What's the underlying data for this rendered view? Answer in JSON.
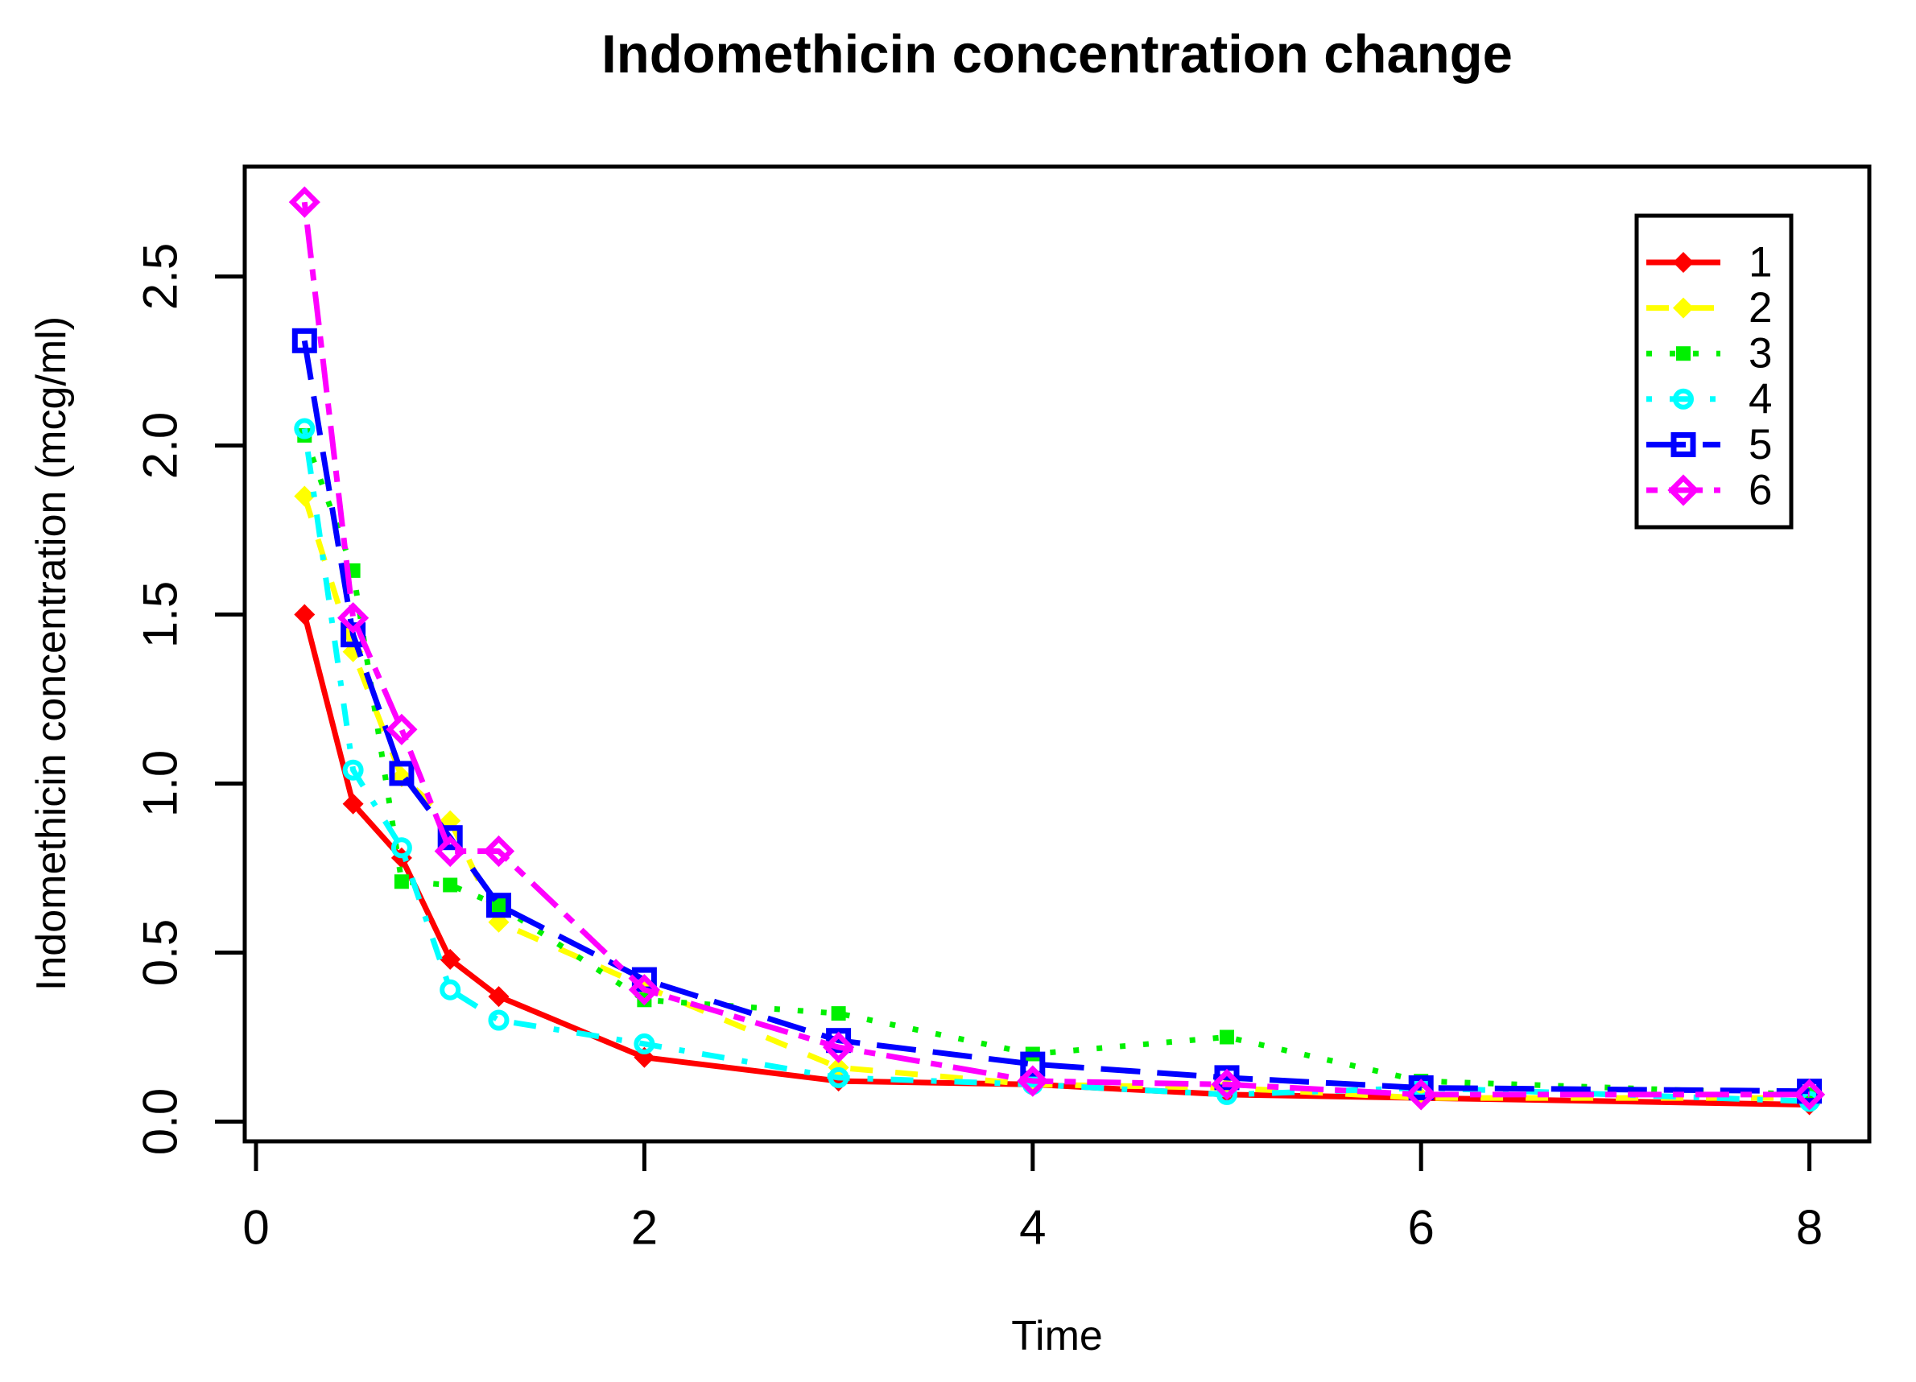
{
  "chart_data": {
    "type": "line",
    "title": "Indomethicin concentration change",
    "xlabel": "Time",
    "ylabel": "Indomethicin concentration (mcg/ml)",
    "x": [
      0.25,
      0.5,
      0.75,
      1,
      1.25,
      2,
      3,
      4,
      5,
      6,
      8
    ],
    "series": [
      {
        "name": "1",
        "color": "#ff0000",
        "linetype": "solid",
        "marker": "filled-diamond",
        "values": [
          1.5,
          0.94,
          0.78,
          0.48,
          0.37,
          0.19,
          0.12,
          0.11,
          0.08,
          0.07,
          0.05
        ]
      },
      {
        "name": "2",
        "color": "#ffff00",
        "linetype": "dashed",
        "marker": "filled-diamond",
        "values": [
          1.85,
          1.39,
          1.02,
          0.89,
          0.59,
          0.4,
          0.16,
          0.11,
          0.1,
          0.07,
          0.07
        ]
      },
      {
        "name": "3",
        "color": "#00f000",
        "linetype": "dotted",
        "marker": "filled-square",
        "values": [
          2.03,
          1.63,
          0.71,
          0.7,
          0.64,
          0.36,
          0.32,
          0.2,
          0.25,
          0.12,
          0.08
        ]
      },
      {
        "name": "4",
        "color": "#00ffff",
        "linetype": "dotdash",
        "marker": "open-circle",
        "values": [
          2.05,
          1.04,
          0.81,
          0.39,
          0.3,
          0.23,
          0.13,
          0.11,
          0.08,
          0.1,
          0.06
        ]
      },
      {
        "name": "5",
        "color": "#0000ff",
        "linetype": "longdash",
        "marker": "open-square",
        "values": [
          2.31,
          1.44,
          1.03,
          0.84,
          0.64,
          0.42,
          0.24,
          0.17,
          0.13,
          0.1,
          0.09
        ]
      },
      {
        "name": "6",
        "color": "#ff00ff",
        "linetype": "twodash",
        "marker": "open-diamond",
        "values": [
          2.72,
          1.49,
          1.16,
          0.8,
          0.8,
          0.39,
          0.22,
          0.12,
          0.11,
          0.08,
          0.08
        ]
      }
    ],
    "x_ticks": {
      "values": [
        0,
        2,
        4,
        6,
        8
      ],
      "labels": [
        "0",
        "2",
        "4",
        "6",
        "8"
      ]
    },
    "y_ticks": {
      "values": [
        0.0,
        0.5,
        1.0,
        1.5,
        2.0,
        2.5
      ],
      "labels": [
        "0.0",
        "0.5",
        "1.0",
        "1.5",
        "2.0",
        "2.5"
      ]
    },
    "xlim": [
      -0.06,
      8.31
    ],
    "ylim": [
      -0.06,
      2.83
    ],
    "grid": false,
    "legend_position": "top-right",
    "legend_labels": [
      "1",
      "2",
      "3",
      "4",
      "5",
      "6"
    ],
    "axis_color": "#000000",
    "background_color": "#ffffff"
  }
}
